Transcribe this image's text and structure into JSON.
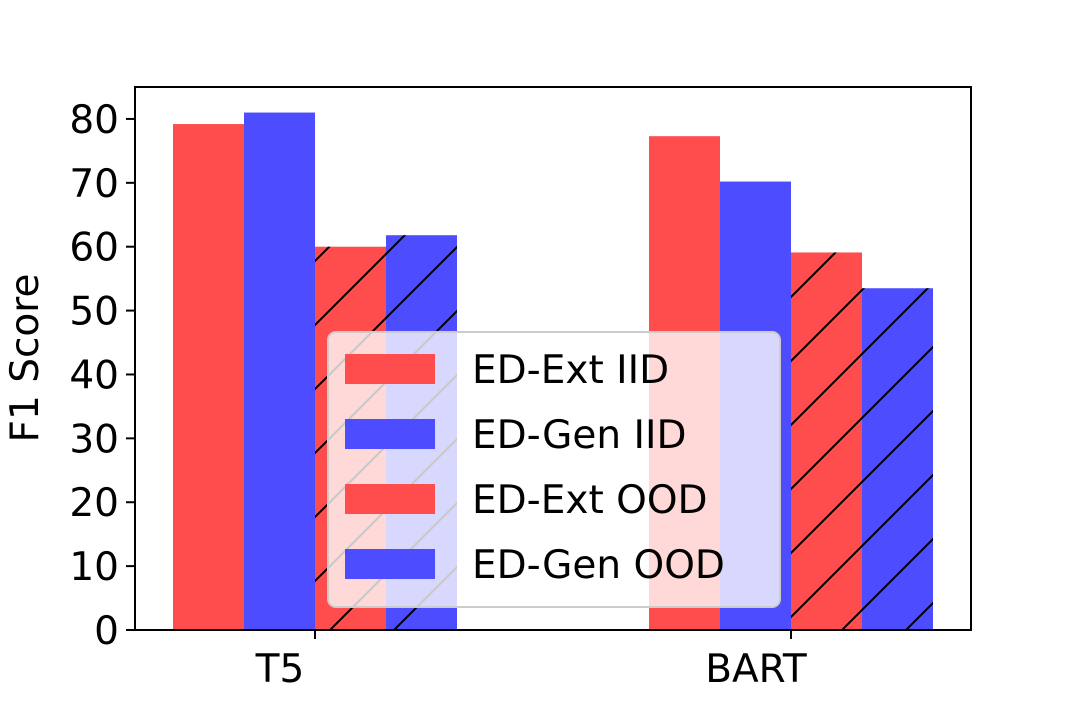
{
  "chart_data": {
    "type": "bar",
    "title": "",
    "xlabel": "",
    "ylabel": "F1 Score",
    "categories": [
      "T5",
      "BART"
    ],
    "ylim": [
      0,
      85
    ],
    "yticks": [
      0,
      10,
      20,
      30,
      40,
      50,
      60,
      70,
      80
    ],
    "grid": false,
    "legend_position": "lower center",
    "series": [
      {
        "name": "ED-Ext IID",
        "values": [
          79.2,
          77.3
        ],
        "color": "#ff4d4d",
        "hatch": false
      },
      {
        "name": "ED-Gen IID",
        "values": [
          81.0,
          70.2
        ],
        "color": "#4d4dff",
        "hatch": false
      },
      {
        "name": "ED-Ext OOD",
        "values": [
          60.0,
          59.1
        ],
        "color": "#ff4d4d",
        "hatch": true
      },
      {
        "name": "ED-Gen OOD",
        "values": [
          61.8,
          53.5
        ],
        "color": "#4d4dff",
        "hatch": true
      }
    ]
  }
}
